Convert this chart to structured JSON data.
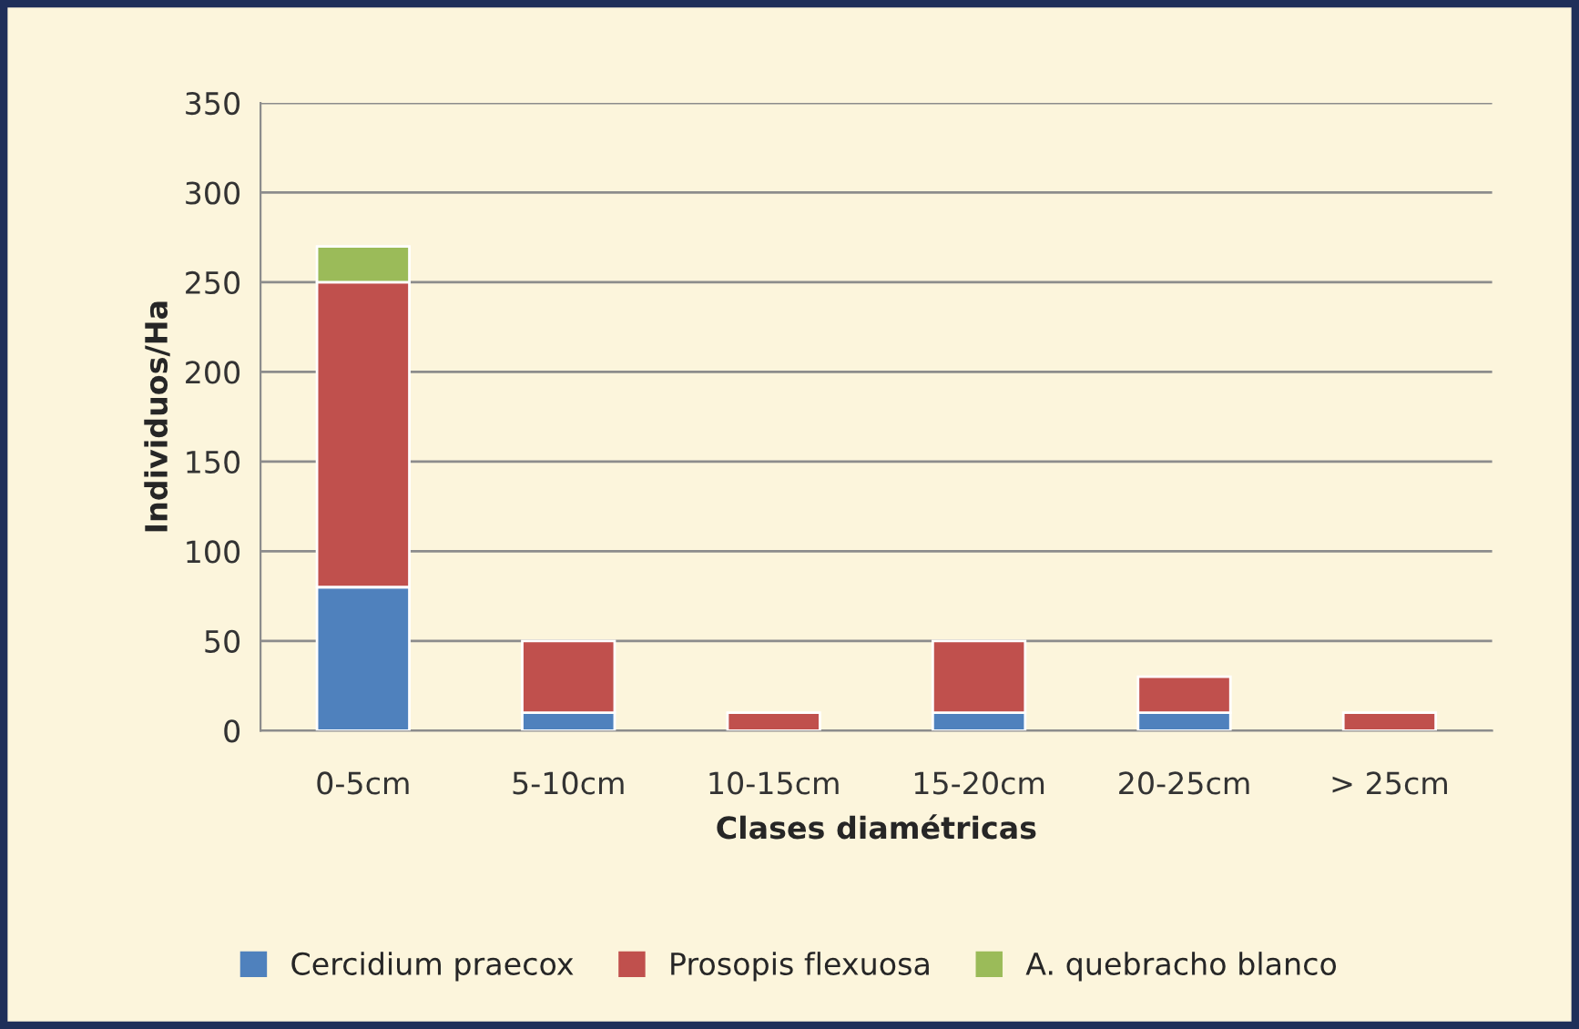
{
  "chart_data": {
    "type": "bar",
    "stacked": true,
    "xlabel": "Clases diamétricas",
    "ylabel": "Individuos/Ha",
    "categories": [
      "0-5cm",
      "5-10cm",
      "10-15cm",
      "15-20cm",
      "20-25cm",
      "> 25cm"
    ],
    "series": [
      {
        "name": "Cercidium praecox",
        "color": "#4f81bd",
        "values": [
          80,
          10,
          null,
          10,
          10,
          null
        ]
      },
      {
        "name": "Prosopis flexuosa",
        "color": "#c0504d",
        "values": [
          170,
          40,
          10,
          40,
          20,
          10
        ]
      },
      {
        "name": "A. quebracho blanco",
        "color": "#9bbb59",
        "values": [
          20,
          null,
          null,
          null,
          null,
          null
        ]
      }
    ],
    "ylim": [
      0,
      350
    ],
    "yticks": [
      0,
      50,
      100,
      150,
      200,
      250,
      300,
      350
    ],
    "grid": "y",
    "legend": "bottom"
  }
}
